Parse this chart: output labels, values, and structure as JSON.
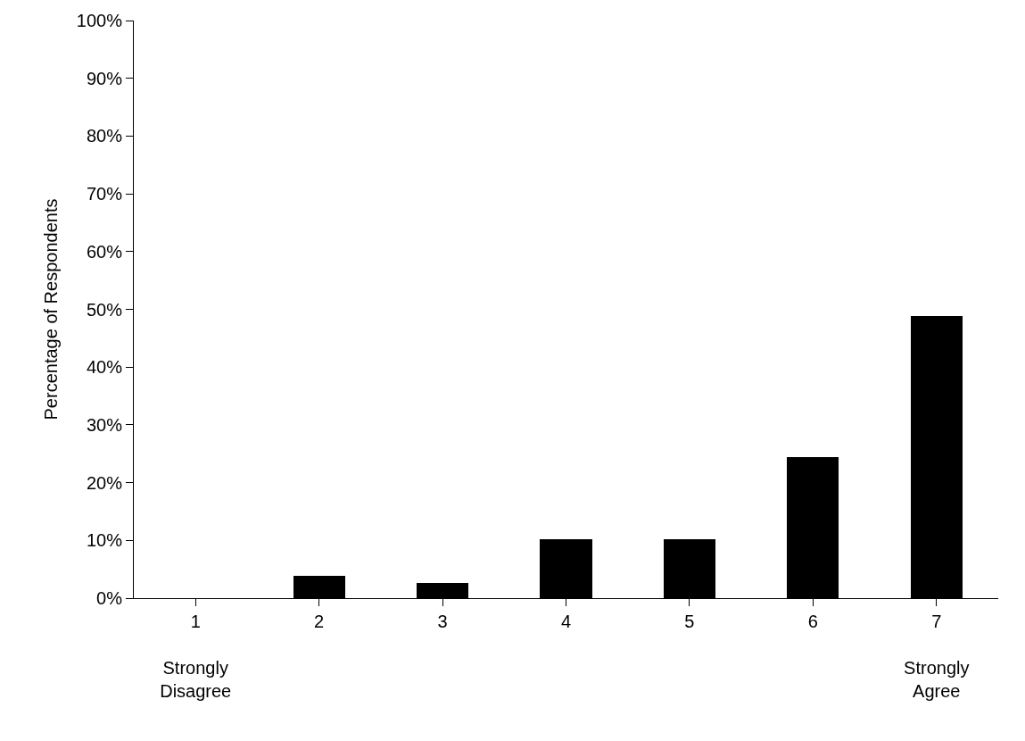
{
  "chart_data": {
    "type": "bar",
    "ylabel": "Percentage of Respondents",
    "categories": [
      "1\n\nStrongly\nDisagree",
      "2",
      "3",
      "4",
      "5",
      "6",
      "7\n\nStrongly\nAgree"
    ],
    "values": [
      0,
      3.8,
      2.6,
      10.2,
      10.2,
      24.4,
      48.8
    ],
    "color": "#000000",
    "ylim": [
      0,
      100
    ],
    "yticks": [
      {
        "value": 0,
        "label": "0%"
      },
      {
        "value": 10,
        "label": "10%"
      },
      {
        "value": 20,
        "label": "20%"
      },
      {
        "value": 30,
        "label": "30%"
      },
      {
        "value": 40,
        "label": "40%"
      },
      {
        "value": 50,
        "label": "50%"
      },
      {
        "value": 60,
        "label": "60%"
      },
      {
        "value": 70,
        "label": "70%"
      },
      {
        "value": 80,
        "label": "80%"
      },
      {
        "value": 90,
        "label": "90%"
      },
      {
        "value": 100,
        "label": "100%"
      }
    ],
    "legend": false
  }
}
